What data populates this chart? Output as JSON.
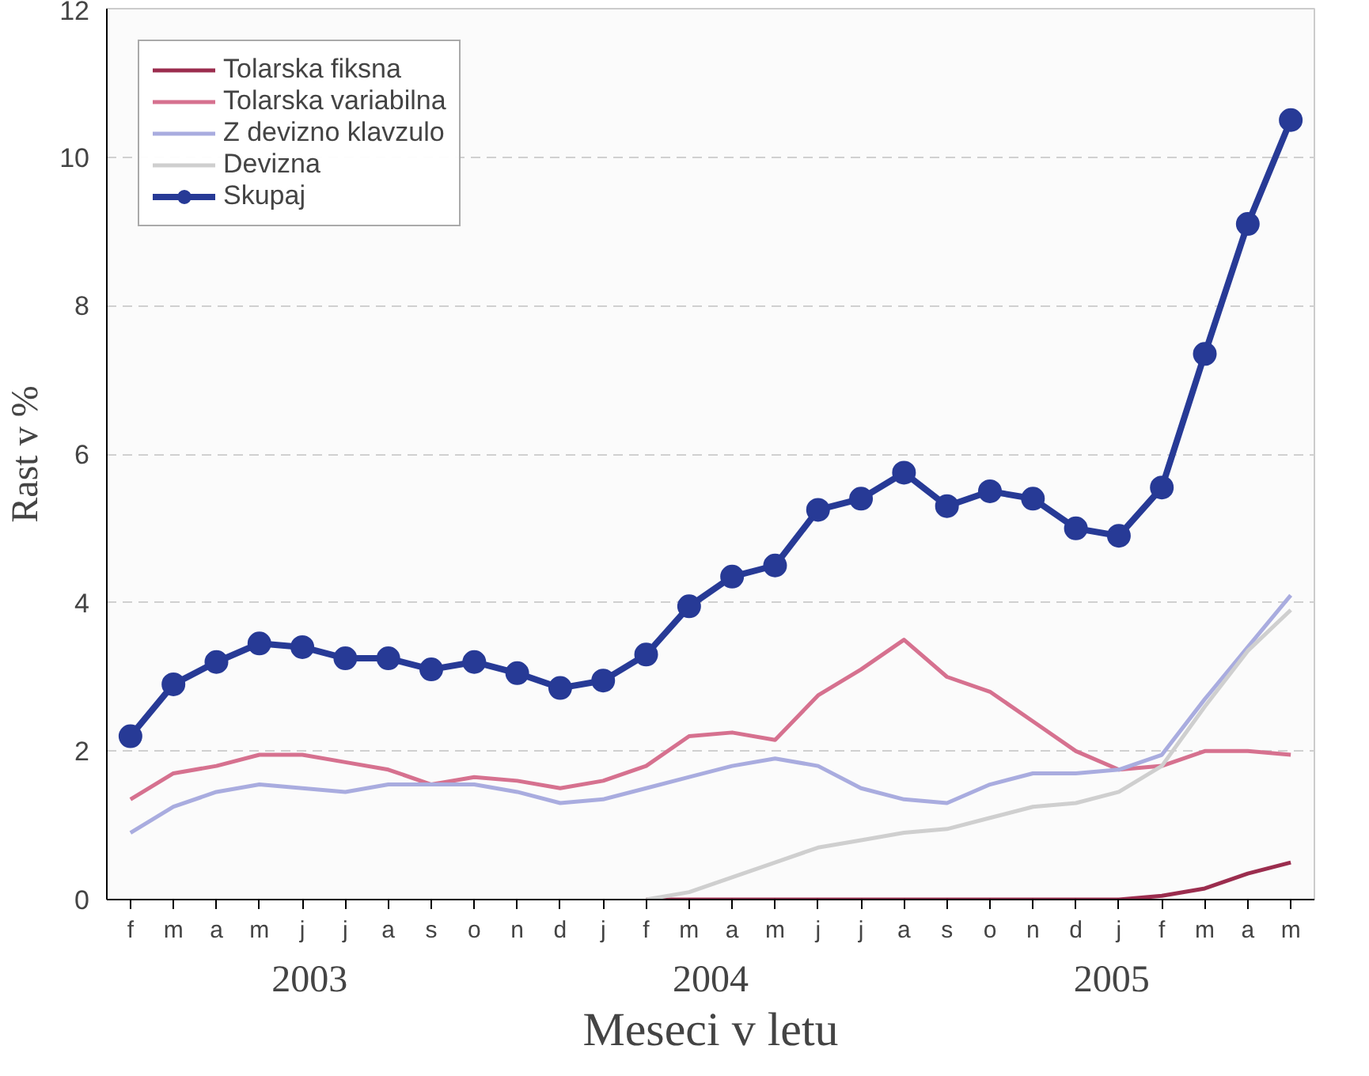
{
  "chart_data": {
    "type": "line",
    "xlabel": "Meseci v letu",
    "ylabel": "Rast v %",
    "categories": [
      "f",
      "m",
      "a",
      "m",
      "j",
      "j",
      "a",
      "s",
      "o",
      "n",
      "d",
      "j",
      "f",
      "m",
      "a",
      "m",
      "j",
      "j",
      "a",
      "s",
      "o",
      "n",
      "d",
      "j",
      "f",
      "m",
      "a",
      "m"
    ],
    "annotations": [
      "2003",
      "2004",
      "2005"
    ],
    "ylim": [
      0,
      12
    ],
    "yticks": [
      0,
      2,
      4,
      6,
      8,
      10,
      12
    ],
    "grid": "y",
    "legend": "top left",
    "series": [
      {
        "name": "Tolarska fiksna",
        "color": "#9b2d4e",
        "marker": "none",
        "values": [
          null,
          null,
          null,
          null,
          null,
          null,
          null,
          null,
          null,
          null,
          null,
          null,
          0,
          0,
          0,
          0,
          0,
          0,
          0,
          0,
          0,
          0,
          0,
          0,
          0.05,
          0.15,
          0.35,
          0.5
        ]
      },
      {
        "name": "Tolarska variabilna",
        "color": "#d6718f",
        "marker": "none",
        "values": [
          1.35,
          1.7,
          1.8,
          1.95,
          1.95,
          1.85,
          1.75,
          1.55,
          1.65,
          1.6,
          1.5,
          1.6,
          1.8,
          2.2,
          2.25,
          2.15,
          2.75,
          3.1,
          3.5,
          3.0,
          2.8,
          2.4,
          2.0,
          1.75,
          1.8,
          2.0,
          2.0,
          1.95
        ]
      },
      {
        "name": "Z devizno klavzulo",
        "color": "#a9acdf",
        "marker": "none",
        "values": [
          0.9,
          1.25,
          1.45,
          1.55,
          1.5,
          1.45,
          1.55,
          1.55,
          1.55,
          1.45,
          1.3,
          1.35,
          1.5,
          1.65,
          1.8,
          1.9,
          1.8,
          1.5,
          1.35,
          1.3,
          1.55,
          1.7,
          1.7,
          1.75,
          1.95,
          2.7,
          3.4,
          4.1
        ]
      },
      {
        "name": "Devizna",
        "color": "#cfcfcf",
        "marker": "none",
        "values": [
          null,
          null,
          null,
          null,
          null,
          null,
          null,
          null,
          null,
          null,
          null,
          null,
          0,
          0.1,
          0.3,
          0.5,
          0.7,
          0.8,
          0.9,
          0.95,
          1.1,
          1.25,
          1.3,
          1.45,
          1.8,
          2.6,
          3.35,
          3.9
        ]
      },
      {
        "name": "Skupaj",
        "color": "#273a96",
        "marker": "circle",
        "values": [
          2.2,
          2.9,
          3.2,
          3.45,
          3.4,
          3.25,
          3.25,
          3.1,
          3.2,
          3.05,
          2.85,
          2.95,
          3.3,
          3.95,
          4.35,
          4.5,
          5.25,
          5.4,
          5.75,
          5.3,
          5.5,
          5.4,
          5.0,
          4.9,
          5.55,
          7.35,
          9.1,
          10.5
        ]
      }
    ]
  }
}
